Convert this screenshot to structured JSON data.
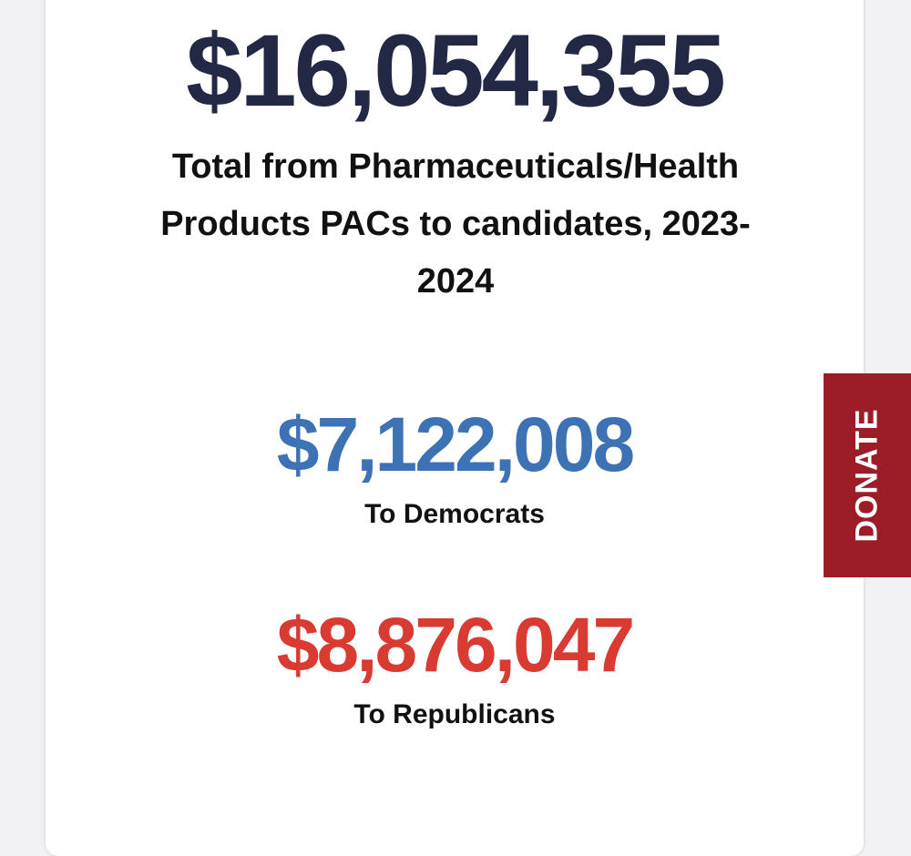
{
  "summary": {
    "total_amount": "$16,054,355",
    "total_label": "Total from Pharmaceuticals/Health Products PACs to candidates, 2023-2024",
    "democrats": {
      "amount": "$7,122,008",
      "label": "To Democrats",
      "color": "#3d72b4"
    },
    "republicans": {
      "amount": "$8,876,047",
      "label": "To Republicans",
      "color": "#d93a31"
    }
  },
  "donate": {
    "label": "DONATE",
    "color": "#9c1d27"
  }
}
